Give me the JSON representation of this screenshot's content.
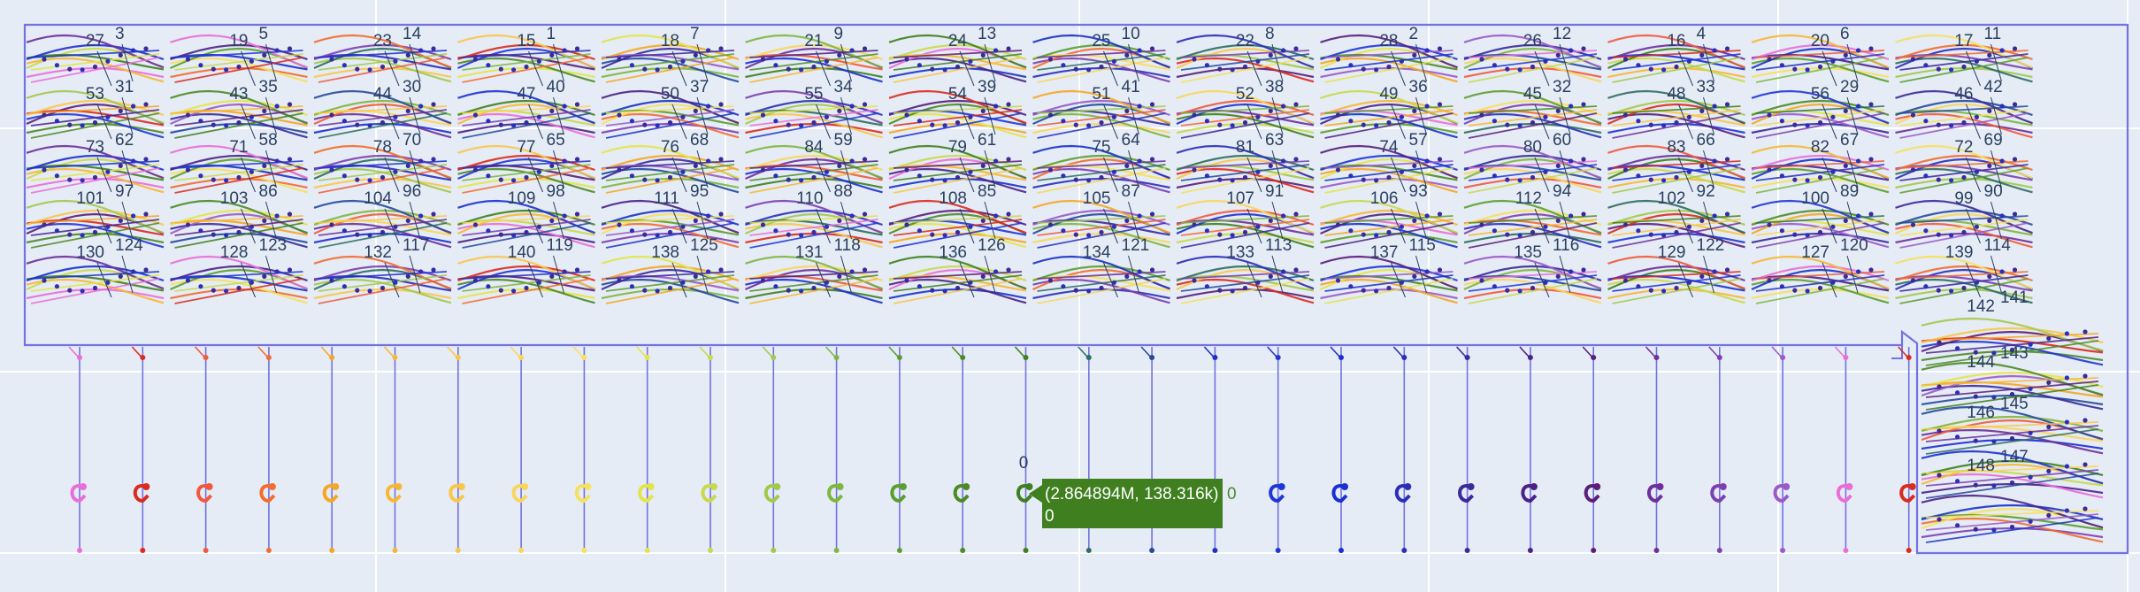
{
  "block_labels": [
    [
      "27",
      "3"
    ],
    [
      "19",
      "5"
    ],
    [
      "23",
      "14"
    ],
    [
      "15",
      "1"
    ],
    [
      "18",
      "7"
    ],
    [
      "21",
      "9"
    ],
    [
      "24",
      "13"
    ],
    [
      "25",
      "10"
    ],
    [
      "22",
      "8"
    ],
    [
      "28",
      "2"
    ],
    [
      "26",
      "12"
    ],
    [
      "16",
      "4"
    ],
    [
      "20",
      "6"
    ],
    [
      "17",
      "11"
    ],
    [
      "53",
      "31"
    ],
    [
      "43",
      "35"
    ],
    [
      "44",
      "30"
    ],
    [
      "47",
      "40"
    ],
    [
      "50",
      "37"
    ],
    [
      "55",
      "34"
    ],
    [
      "54",
      "39"
    ],
    [
      "51",
      "41"
    ],
    [
      "52",
      "38"
    ],
    [
      "49",
      "36"
    ],
    [
      "45",
      "32"
    ],
    [
      "48",
      "33"
    ],
    [
      "56",
      "29"
    ],
    [
      "46",
      "42"
    ],
    [
      "73",
      "62"
    ],
    [
      "71",
      "58"
    ],
    [
      "78",
      "70"
    ],
    [
      "77",
      "65"
    ],
    [
      "76",
      "68"
    ],
    [
      "84",
      "59"
    ],
    [
      "79",
      "61"
    ],
    [
      "75",
      "64"
    ],
    [
      "81",
      "63"
    ],
    [
      "74",
      "57"
    ],
    [
      "80",
      "60"
    ],
    [
      "83",
      "66"
    ],
    [
      "82",
      "67"
    ],
    [
      "72",
      "69"
    ],
    [
      "101",
      "97"
    ],
    [
      "103",
      "86"
    ],
    [
      "104",
      "96"
    ],
    [
      "109",
      "98"
    ],
    [
      "111",
      "95"
    ],
    [
      "110",
      "88"
    ],
    [
      "108",
      "85"
    ],
    [
      "105",
      "87"
    ],
    [
      "107",
      "91"
    ],
    [
      "106",
      "93"
    ],
    [
      "112",
      "94"
    ],
    [
      "102",
      "92"
    ],
    [
      "100",
      "89"
    ],
    [
      "99",
      "90"
    ],
    [
      "130",
      "124"
    ],
    [
      "128",
      "123"
    ],
    [
      "132",
      "117"
    ],
    [
      "140",
      "119"
    ],
    [
      "138",
      "125"
    ],
    [
      "131",
      "118"
    ],
    [
      "136",
      "126"
    ],
    [
      "134",
      "121"
    ],
    [
      "133",
      "113"
    ],
    [
      "137",
      "115"
    ],
    [
      "135",
      "116"
    ],
    [
      "129",
      "122"
    ],
    [
      "127",
      "120"
    ],
    [
      "139",
      "114"
    ]
  ],
  "side_labels": [
    [
      "142",
      "141"
    ],
    [
      "144",
      "143"
    ],
    [
      "146",
      "145"
    ],
    [
      "148",
      "147"
    ]
  ],
  "root_label": "0",
  "tooltip": {
    "text": "(2.864894M, 138.316k)",
    "sub": "0",
    "side": "0",
    "color": "#3f7f1f"
  },
  "colors": {
    "background": "#e5ecf6",
    "frame": "#7272e0",
    "grid": "#ffffff",
    "label": "#2a3f5f",
    "palette": [
      "#e96ed8",
      "#d92b1e",
      "#f05a3c",
      "#f26d2f",
      "#f5a623",
      "#f7b733",
      "#f8c64a",
      "#f9d55c",
      "#f6e05e",
      "#e3e449",
      "#c8d94c",
      "#a2c94a",
      "#7eb63e",
      "#5a9e2e",
      "#4d8a26",
      "#3f7f1f",
      "#2e6e60",
      "#254a9c",
      "#1a33c6",
      "#2036d6",
      "#1c2fd1",
      "#2b2fb8",
      "#3a2a9a",
      "#4a2286",
      "#5a1e7a",
      "#6d2f9a",
      "#7c3fb0",
      "#9a5ac8"
    ]
  }
}
